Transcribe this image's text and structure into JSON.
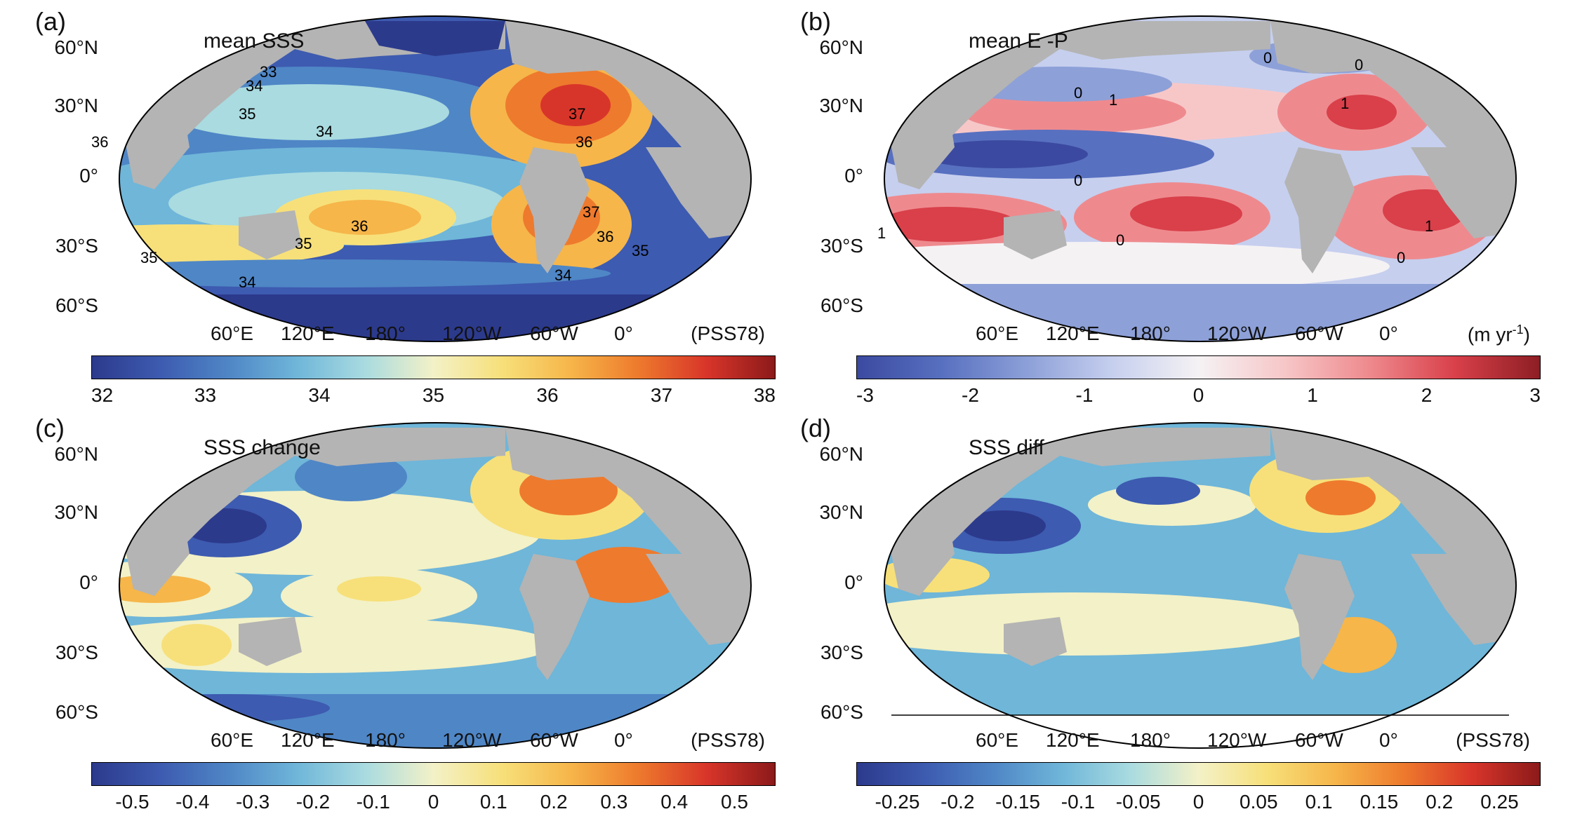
{
  "colors": {
    "land": "#b4b4b4",
    "ocean_frame": "#000000",
    "diverging": [
      "#2c3a8c",
      "#3d5bb0",
      "#4f86c6",
      "#6fb6d9",
      "#a9dbe0",
      "#f3f1c7",
      "#f7e07a",
      "#f6b64a",
      "#ee7a2d",
      "#d8352a",
      "#8c1a1a"
    ],
    "ep_scale": [
      "#3b4aa0",
      "#5870c0",
      "#8da0d8",
      "#c6cfee",
      "#f5f2f4",
      "#f7c7c8",
      "#ee8a8e",
      "#d9404a",
      "#8d1e24"
    ]
  },
  "panels": [
    {
      "id": "a",
      "letter": "(a)",
      "title": "mean SSS",
      "units": "(PSS78)",
      "lat_labels": [
        "60°N",
        "30°N",
        "0°",
        "30°S",
        "60°S"
      ],
      "lon_labels": [
        "60°E",
        "120°E",
        "180°",
        "120°W",
        "60°W",
        "0°"
      ],
      "colorbar": {
        "scale": "diverging",
        "ticks": [
          "32",
          "33",
          "34",
          "35",
          "36",
          "37",
          "38"
        ]
      }
    },
    {
      "id": "b",
      "letter": "(b)",
      "title": "mean E -P",
      "units": "(m yr",
      "units_sup": "-1",
      "units_close": ")",
      "lat_labels": [
        "60°N",
        "30°N",
        "0°",
        "30°S",
        "60°S"
      ],
      "lon_labels": [
        "60°E",
        "120°E",
        "180°",
        "120°W",
        "60°W",
        "0°"
      ],
      "colorbar": {
        "scale": "ep",
        "ticks": [
          "-3",
          "-2",
          "-1",
          "0",
          "1",
          "2",
          "3"
        ]
      }
    },
    {
      "id": "c",
      "letter": "(c)",
      "title": "SSS change",
      "units": "(PSS78)",
      "lat_labels": [
        "60°N",
        "30°N",
        "0°",
        "30°S",
        "60°S"
      ],
      "lon_labels": [
        "60°E",
        "120°E",
        "180°",
        "120°W",
        "60°W",
        "0°"
      ],
      "colorbar": {
        "scale": "diverging",
        "ticks": [
          "-0.5",
          "-0.4",
          "-0.3",
          "-0.2",
          "-0.1",
          "0",
          "0.1",
          "0.2",
          "0.3",
          "0.4",
          "0.5"
        ]
      }
    },
    {
      "id": "d",
      "letter": "(d)",
      "title": "SSS diff",
      "units": "(PSS78)",
      "lat_labels": [
        "60°N",
        "30°N",
        "0°",
        "30°S",
        "60°S"
      ],
      "lon_labels": [
        "60°E",
        "120°E",
        "180°",
        "120°W",
        "60°W",
        "0°"
      ],
      "colorbar": {
        "scale": "diverging",
        "ticks": [
          "-0.25",
          "-0.2",
          "-0.15",
          "-0.1",
          "-0.05",
          "0",
          "0.05",
          "0.1",
          "0.15",
          "0.2",
          "0.25"
        ]
      }
    }
  ],
  "contour_labels": {
    "a": [
      "33",
      "34",
      "35",
      "34",
      "37",
      "36",
      "36",
      "36",
      "35",
      "37",
      "36",
      "35",
      "35",
      "34",
      "34"
    ],
    "b": [
      "0",
      "0",
      "0",
      "1",
      "1",
      "0",
      "0",
      "1",
      "1",
      "0"
    ]
  }
}
